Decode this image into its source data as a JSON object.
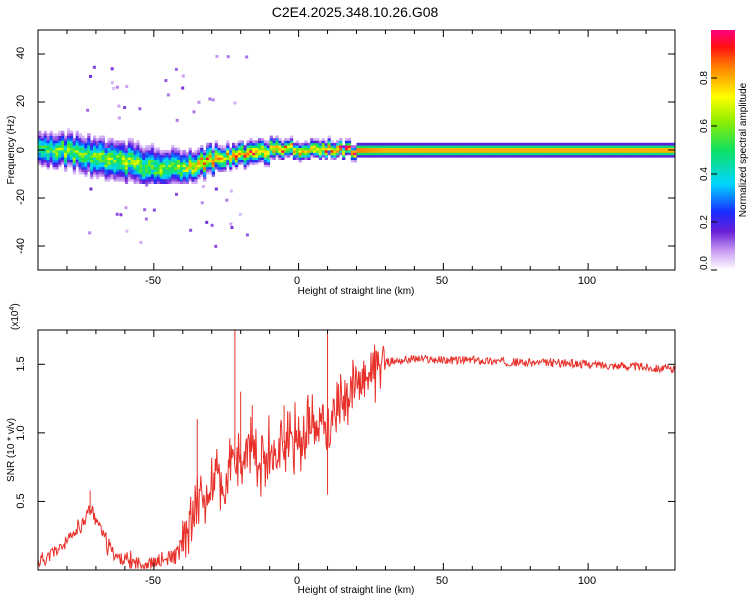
{
  "title": "C2E4.2025.348.10.26.G08",
  "chart_data": [
    {
      "type": "heatmap",
      "xlabel": "Height of straight line (km)",
      "ylabel": "Frequency (Hz)",
      "xlim": [
        -90,
        130
      ],
      "ylim": [
        -50,
        50
      ],
      "x_ticks": [
        -50,
        0,
        50,
        100
      ],
      "y_ticks": [
        -40,
        -20,
        0,
        20,
        40
      ],
      "x_tick_labels": [
        "-50",
        "0",
        "50",
        "100"
      ],
      "y_tick_labels": [
        "-40",
        "-20",
        "0",
        "20",
        "40"
      ],
      "colorbar": {
        "label": "Normalized spectral amplitude",
        "range": [
          0,
          1
        ],
        "ticks": [
          0.0,
          0.2,
          0.4,
          0.6,
          0.8
        ],
        "tick_labels": [
          "0.0",
          "0.2",
          "0.4",
          "0.6",
          "0.8"
        ]
      },
      "ridge": {
        "x": [
          -90,
          -80,
          -70,
          -60,
          -50,
          -40,
          -35,
          -30,
          -25,
          -20,
          -15,
          -10,
          -5,
          0,
          5,
          10,
          15,
          20,
          30,
          40,
          50,
          130
        ],
        "freq": [
          1,
          0,
          -3,
          -5,
          -7,
          -7,
          -6,
          -4,
          -3,
          -2,
          -1,
          0,
          1,
          0,
          0,
          1,
          0,
          0,
          0,
          0,
          0,
          0
        ],
        "spread": [
          6,
          6,
          7,
          7,
          7,
          6,
          5,
          5,
          4,
          4,
          4,
          4,
          3,
          3,
          3,
          3,
          2.5,
          2.5,
          2.5,
          2.5,
          2.5,
          2.5
        ],
        "peak": [
          0.5,
          0.6,
          0.55,
          0.6,
          0.55,
          0.6,
          0.75,
          0.8,
          0.7,
          0.8,
          0.8,
          0.75,
          0.8,
          0.75,
          0.8,
          0.85,
          0.9,
          0.9,
          0.85,
          0.85,
          0.85,
          0.85
        ]
      }
    },
    {
      "type": "line",
      "xlabel": "Height of straight line (km)",
      "ylabel": "SNR (10 * v/v)",
      "y_exponent_label": "(x10",
      "y_exponent_power": "4",
      "y_exponent_close": ")",
      "xlim": [
        -90,
        130
      ],
      "ylim": [
        0,
        1.75
      ],
      "x_ticks": [
        -50,
        0,
        50,
        100
      ],
      "y_ticks": [
        0.5,
        1.0,
        1.5
      ],
      "x_tick_labels": [
        "-50",
        "0",
        "50",
        "100"
      ],
      "y_tick_labels": [
        "0.5",
        "1.0",
        "1.5"
      ],
      "series": [
        {
          "name": "SNR",
          "color": "#e8302a",
          "x": [
            -90,
            -85,
            -80,
            -76,
            -72,
            -70,
            -66,
            -62,
            -58,
            -54,
            -50,
            -46,
            -42,
            -40,
            -38,
            -36,
            -34,
            -32,
            -30,
            -28,
            -26,
            -24,
            -22,
            -20,
            -18,
            -16,
            -14,
            -12,
            -10,
            -8,
            -6,
            -4,
            -2,
            0,
            2,
            4,
            6,
            8,
            10,
            12,
            14,
            16,
            18,
            20,
            24,
            28,
            32,
            36,
            40,
            50,
            60,
            70,
            80,
            90,
            100,
            110,
            120,
            130
          ],
          "y": [
            0.06,
            0.12,
            0.2,
            0.3,
            0.45,
            0.38,
            0.18,
            0.08,
            0.06,
            0.05,
            0.05,
            0.07,
            0.12,
            0.2,
            0.3,
            0.45,
            0.55,
            0.5,
            0.6,
            0.7,
            0.55,
            0.75,
            0.8,
            0.7,
            0.85,
            0.9,
            0.75,
            0.85,
            0.9,
            0.8,
            0.95,
            0.9,
            0.95,
            1.0,
            0.95,
            1.05,
            1.0,
            1.1,
            1.05,
            1.15,
            1.2,
            1.25,
            1.3,
            1.35,
            1.45,
            1.5,
            1.52,
            1.53,
            1.54,
            1.53,
            1.53,
            1.52,
            1.51,
            1.51,
            1.5,
            1.49,
            1.48,
            1.46
          ]
        }
      ],
      "spikes": [
        {
          "x": -72,
          "y": 0.58
        },
        {
          "x": -35,
          "y": 1.1
        },
        {
          "x": -22,
          "y": 1.75
        },
        {
          "x": -20,
          "y": 1.3
        },
        {
          "x": -16,
          "y": 1.2
        },
        {
          "x": -5,
          "y": 1.2
        },
        {
          "x": 10,
          "y": 1.72
        },
        {
          "x": 10,
          "y": 0.55
        }
      ]
    }
  ]
}
